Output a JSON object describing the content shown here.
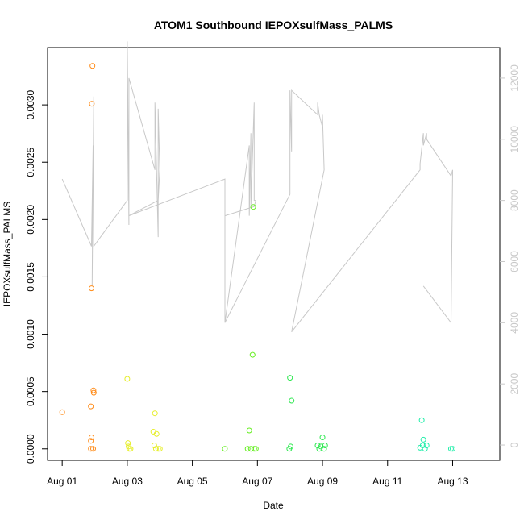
{
  "chart_data": {
    "type": "scatter",
    "title": "ATOM1 Southbound IEPOXsulfMass_PALMS",
    "xlabel": "Date",
    "ylabel": "IEPOXsulfMass_PALMS",
    "x_unit": "days_since_Aug_01",
    "xlim": [
      -0.45,
      13.45
    ],
    "ylim": [
      -0.0001,
      0.0035
    ],
    "y2lim": [
      -500,
      13000
    ],
    "x_ticks": [
      0,
      2,
      4,
      6,
      8,
      10,
      12
    ],
    "x_tick_labels": [
      "Aug 01",
      "Aug 03",
      "Aug 05",
      "Aug 07",
      "Aug 09",
      "Aug 11",
      "Aug 13"
    ],
    "y_ticks": [
      0.0,
      0.0005,
      0.001,
      0.0015,
      0.002,
      0.0025,
      0.003
    ],
    "y_tick_labels": [
      "0.0000",
      "0.0005",
      "0.0010",
      "0.0015",
      "0.0020",
      "0.0025",
      "0.0030"
    ],
    "y2_ticks": [
      0,
      2000,
      4000,
      6000,
      8000,
      10000,
      12000
    ],
    "y2_tick_labels": [
      "0",
      "2000",
      "4000",
      "6000",
      "8000",
      "10000",
      "12000"
    ],
    "grid": false,
    "points": [
      {
        "x": 0.0,
        "y": 0.00032,
        "color": "#ff8c1a"
      },
      {
        "x": 0.88,
        "y": 0.00037,
        "color": "#ff8c1a"
      },
      {
        "x": 0.9,
        "y": 0.0001,
        "color": "#ff8c1a"
      },
      {
        "x": 0.88,
        "y": 7e-05,
        "color": "#ff8c1a"
      },
      {
        "x": 0.88,
        "y": 0.0,
        "color": "#ff8c1a"
      },
      {
        "x": 0.95,
        "y": 0.0,
        "color": "#ff8c1a"
      },
      {
        "x": 0.9,
        "y": 0.0014,
        "color": "#ff8c1a"
      },
      {
        "x": 0.93,
        "y": 0.00334,
        "color": "#ff8c1a"
      },
      {
        "x": 0.91,
        "y": 0.00301,
        "color": "#ff8c1a"
      },
      {
        "x": 0.96,
        "y": 0.00051,
        "color": "#ff8c1a"
      },
      {
        "x": 0.97,
        "y": 0.00049,
        "color": "#ff8c1a"
      },
      {
        "x": 2.0,
        "y": 0.00061,
        "color": "#e6ee2a"
      },
      {
        "x": 2.02,
        "y": 5e-05,
        "color": "#e6ee2a"
      },
      {
        "x": 2.04,
        "y": 2e-05,
        "color": "#e6ee2a"
      },
      {
        "x": 2.06,
        "y": 0.0,
        "color": "#e6ee2a"
      },
      {
        "x": 2.1,
        "y": 0.0,
        "color": "#e6ee2a"
      },
      {
        "x": 2.85,
        "y": 0.00031,
        "color": "#e6ee2a"
      },
      {
        "x": 2.8,
        "y": 0.00015,
        "color": "#e6ee2a"
      },
      {
        "x": 2.9,
        "y": 0.00013,
        "color": "#e6ee2a"
      },
      {
        "x": 2.83,
        "y": 3e-05,
        "color": "#e6ee2a"
      },
      {
        "x": 2.88,
        "y": 0.0,
        "color": "#e6ee2a"
      },
      {
        "x": 2.95,
        "y": 0.0,
        "color": "#e6ee2a"
      },
      {
        "x": 3.0,
        "y": 0.0,
        "color": "#e6ee2a"
      },
      {
        "x": 5.0,
        "y": 0.0,
        "color": "#66ee22"
      },
      {
        "x": 5.75,
        "y": 0.00016,
        "color": "#66ee22"
      },
      {
        "x": 5.85,
        "y": 0.00082,
        "color": "#66ee22"
      },
      {
        "x": 5.87,
        "y": 0.00211,
        "color": "#66ee22"
      },
      {
        "x": 5.7,
        "y": 0.0,
        "color": "#66ee22"
      },
      {
        "x": 5.8,
        "y": 0.0,
        "color": "#66ee22"
      },
      {
        "x": 5.9,
        "y": 0.0,
        "color": "#66ee22"
      },
      {
        "x": 5.95,
        "y": 0.0,
        "color": "#66ee22"
      },
      {
        "x": 7.0,
        "y": 0.00062,
        "color": "#2ee850"
      },
      {
        "x": 7.05,
        "y": 0.00042,
        "color": "#2ee850"
      },
      {
        "x": 7.02,
        "y": 2e-05,
        "color": "#2ee850"
      },
      {
        "x": 6.98,
        "y": 0.0,
        "color": "#2ee850"
      },
      {
        "x": 7.85,
        "y": 3e-05,
        "color": "#2ee850"
      },
      {
        "x": 7.9,
        "y": 0.0,
        "color": "#2ee850"
      },
      {
        "x": 7.95,
        "y": 2e-05,
        "color": "#2ee850"
      },
      {
        "x": 8.0,
        "y": 0.0001,
        "color": "#2ee850"
      },
      {
        "x": 8.05,
        "y": 0.0,
        "color": "#2ee850"
      },
      {
        "x": 8.08,
        "y": 3e-05,
        "color": "#2ee850"
      },
      {
        "x": 11.05,
        "y": 0.00025,
        "color": "#22eeaa"
      },
      {
        "x": 11.1,
        "y": 8e-05,
        "color": "#22eeaa"
      },
      {
        "x": 11.08,
        "y": 3e-05,
        "color": "#22eeaa"
      },
      {
        "x": 11.0,
        "y": 1e-05,
        "color": "#22eeaa"
      },
      {
        "x": 11.15,
        "y": 0.0,
        "color": "#22eeaa"
      },
      {
        "x": 11.2,
        "y": 3e-05,
        "color": "#22eeaa"
      },
      {
        "x": 11.95,
        "y": 0.0,
        "color": "#22eeaa"
      },
      {
        "x": 12.0,
        "y": 0.0,
        "color": "#22eeaa"
      }
    ],
    "line_series_right_axis": {
      "color": "#c8c8c8",
      "x": [
        0.0,
        0.9,
        0.95,
        0.92,
        0.97,
        0.97,
        2.0,
        2.0,
        2.05,
        2.05,
        2.85,
        2.85,
        2.95,
        2.95,
        3.0,
        2.95,
        2.05,
        2.05,
        5.0,
        5.0,
        5.75,
        5.75,
        5.8,
        5.8,
        5.9,
        5.9,
        5.95,
        5.9,
        5.0,
        5.0,
        7.0,
        7.0,
        7.05,
        7.05,
        7.85,
        7.85,
        7.9,
        7.9,
        8.0,
        8.0,
        8.05,
        7.05,
        11.0,
        11.0,
        11.1,
        11.1,
        11.2,
        11.2,
        11.95,
        11.95,
        12.0,
        11.95,
        11.1
      ],
      "y": [
        8700,
        6500,
        9800,
        5200,
        11400,
        6500,
        8000,
        13200,
        7200,
        12000,
        9000,
        11200,
        6800,
        11000,
        9000,
        8000,
        7500,
        7500,
        8700,
        4000,
        9800,
        7500,
        10200,
        7800,
        11200,
        8000,
        8000,
        7800,
        7500,
        4000,
        8200,
        11600,
        9600,
        11600,
        10800,
        11200,
        10800,
        10800,
        10400,
        10800,
        9000,
        3700,
        9000,
        9200,
        10200,
        9800,
        10200,
        10000,
        8800,
        8800,
        9000,
        4000,
        5200
      ]
    }
  }
}
